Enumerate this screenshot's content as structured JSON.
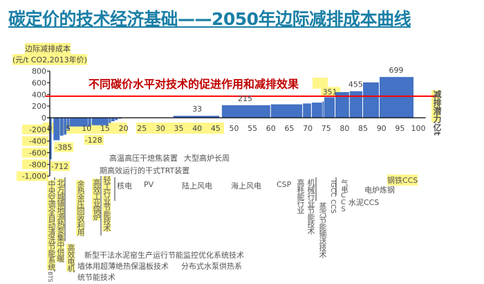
{
  "title": "碳定价的技术经济基础——2050年边际减排成本曲线",
  "annotation": "不同碳价水平对技术的促进作用和减排效果",
  "chart_data": {
    "type": "bar",
    "subtype": "marginal-abatement-cost-curve",
    "ylabel": [
      "边际减排成本",
      "(元/t CO2,2013年价)"
    ],
    "xlabel": "减排潜力亿t",
    "xlim": [
      0,
      100
    ],
    "ylim": [
      -1000,
      800
    ],
    "xticks": [
      "0",
      "5",
      "10",
      "15",
      "20",
      "25",
      "30",
      "35",
      "40",
      "45",
      "50",
      "55",
      "60",
      "65",
      "70",
      "75",
      "80",
      "85",
      "90",
      "95",
      "100"
    ],
    "yticks": [
      "800",
      "600",
      "400",
      "200",
      "0",
      "-200",
      "-400",
      "-600",
      "-800",
      "-1,000"
    ],
    "grid": false,
    "bar_color": "#4472c4",
    "carbon_price_line": {
      "value": 370,
      "color": "#ff0000"
    },
    "bars": [
      {
        "x0": 0,
        "x1": 0.5,
        "value": -712
      },
      {
        "x0": 1,
        "x1": 2.7,
        "value": -385
      },
      {
        "x0": 2.8,
        "x1": 3.7,
        "value": -306
      },
      {
        "x0": 3.8,
        "x1": 4.5,
        "value": -290
      },
      {
        "x0": 4.6,
        "x1": 5.3,
        "value": -200
      },
      {
        "x0": 5.4,
        "x1": 10.3,
        "value": -150
      },
      {
        "x0": 10.4,
        "x1": 11.2,
        "value": -150
      },
      {
        "x0": 11.4,
        "x1": 15.9,
        "value": -128
      },
      {
        "x0": 16,
        "x1": 16.6,
        "value": -90
      },
      {
        "x0": 16.7,
        "x1": 17.6,
        "value": -60
      },
      {
        "x0": 17.7,
        "x1": 18.4,
        "value": -40
      },
      {
        "x0": 18.5,
        "x1": 19.5,
        "value": -15
      },
      {
        "x0": 33.5,
        "x1": 46,
        "value": 33
      },
      {
        "x0": 46.7,
        "x1": 59.8,
        "value": 215
      },
      {
        "x0": 60,
        "x1": 68.5,
        "value": 230
      },
      {
        "x0": 68.7,
        "x1": 70.9,
        "value": 245
      },
      {
        "x0": 71.1,
        "x1": 73.9,
        "value": 260
      },
      {
        "x0": 74,
        "x1": 74.4,
        "value": 280
      },
      {
        "x0": 74.5,
        "x1": 77.3,
        "value": 351
      },
      {
        "x0": 77.5,
        "x1": 81.2,
        "value": 440
      },
      {
        "x0": 81.4,
        "x1": 84.8,
        "value": 455
      },
      {
        "x0": 85,
        "x1": 89.3,
        "value": 606
      },
      {
        "x0": 89.5,
        "x1": 98.7,
        "value": 699
      }
    ],
    "data_labels": [
      {
        "text": "-712",
        "x": 0,
        "value": -712
      },
      {
        "text": "-385",
        "x": 1,
        "value": -385
      },
      {
        "text": "-128",
        "x": 11.4,
        "value": -128
      },
      {
        "text": "33",
        "x": 40,
        "value": 33
      },
      {
        "text": "215",
        "x": 53,
        "value": 215
      },
      {
        "text": "351",
        "x": 76,
        "value": 351
      },
      {
        "text": "455",
        "x": 83,
        "value": 455
      },
      {
        "text": "699",
        "x": 94,
        "value": 699
      }
    ]
  },
  "tech_labels": {
    "central_ac": "中央空调全自动清洗节能系统",
    "bts": "BTS",
    "heat_pump": "北方城镇地源热泵集中供暖",
    "motor": "高效电机",
    "waste_heat": "余热余压回收利用",
    "boiler": "高效工业锅炉",
    "light_industry": "轻工行业节能技术",
    "cdq": "高温高压干熄焦装置",
    "blast_furnace_1": "大型高炉长周",
    "blast_furnace_2": "期高效运行的干式TRT装置",
    "nuclear": "核电",
    "pv": "PV",
    "onshore_wind": "陆上风电",
    "offshore_wind": "海上风电",
    "csp": "CSP",
    "high_energy": "高耗能行业",
    "machinery": "机械行业节能技术",
    "steam": "蒸汽节能输送技术",
    "igcc": "IGCC CCS",
    "gas_ccs": "气电CCS",
    "cement_ccs": "水泥CCS",
    "eaf": "电炉炼钢",
    "steel_ccs": "钢铁CCS",
    "cement_kiln": "新型干法水泥窑生产运行节能监控优化系统技术",
    "wall_board": "墙体用超薄绝热保温板技术",
    "water_pump_1": "分布式水泵供热系",
    "water_pump_2": "统节能技术"
  }
}
